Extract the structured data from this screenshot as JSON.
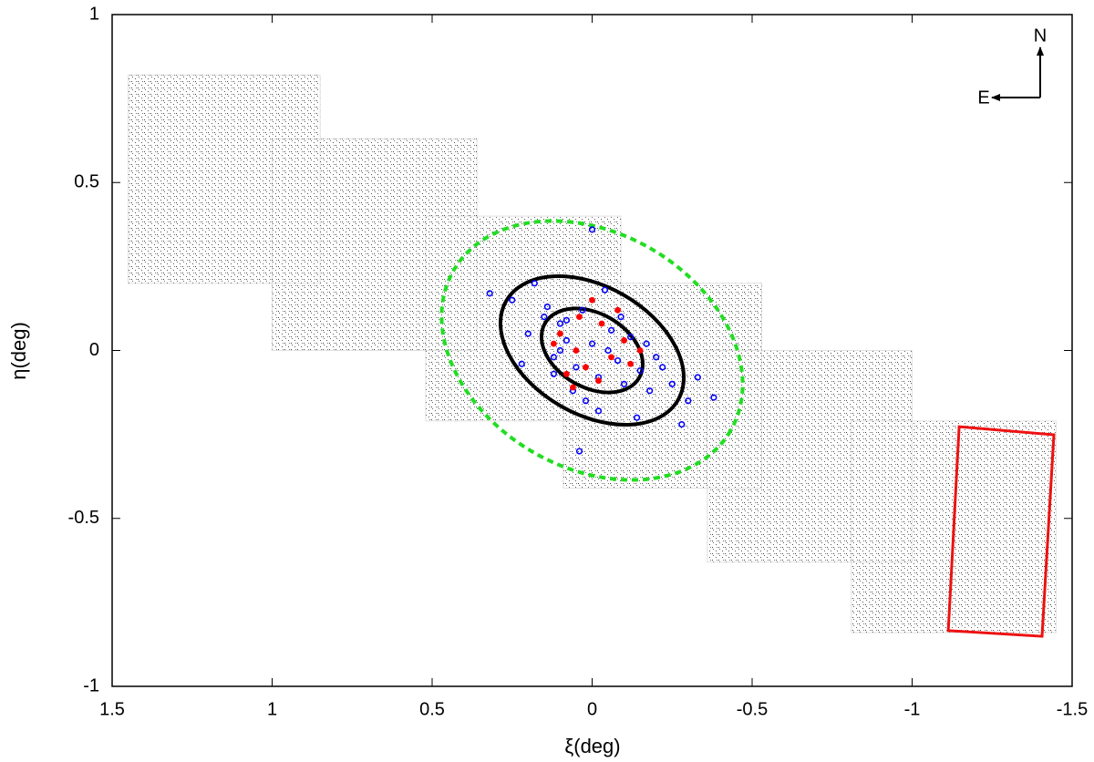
{
  "chart_data": {
    "type": "scatter",
    "xlabel": "ξ(deg)",
    "ylabel": "η(deg)",
    "xlim": [
      1.5,
      -1.5
    ],
    "ylim": [
      -1,
      1
    ],
    "xticks": [
      1.5,
      1,
      0.5,
      0,
      -0.5,
      -1,
      -1.5
    ],
    "yticks": [
      1,
      0.5,
      0,
      -0.5,
      -1
    ],
    "compass": {
      "north": "N",
      "east": "E"
    },
    "field_color": "#333333",
    "fields": [
      {
        "xlim": [
          1.45,
          0.85
        ],
        "ylim": [
          0.2,
          0.82
        ]
      },
      {
        "xlim": [
          1.0,
          0.36
        ],
        "ylim": [
          0.0,
          0.63
        ]
      },
      {
        "xlim": [
          0.52,
          -0.09
        ],
        "ylim": [
          -0.21,
          0.4
        ]
      },
      {
        "xlim": [
          0.09,
          -0.53
        ],
        "ylim": [
          -0.41,
          0.2
        ]
      },
      {
        "xlim": [
          -0.36,
          -1.0
        ],
        "ylim": [
          -0.63,
          0.0
        ]
      },
      {
        "xlim": [
          -0.81,
          -1.45
        ],
        "ylim": [
          -0.84,
          -0.21
        ]
      }
    ],
    "ellipses": [
      {
        "center": [
          0,
          0
        ],
        "semi_axes": [
          0.17,
          0.11
        ],
        "angle": 30,
        "color": "#000000",
        "dashed": false
      },
      {
        "center": [
          0,
          0
        ],
        "semi_axes": [
          0.31,
          0.19
        ],
        "angle": 30,
        "color": "#000000",
        "dashed": false
      },
      {
        "center": [
          0,
          0
        ],
        "semi_axes": [
          0.5,
          0.35
        ],
        "angle": 30,
        "color": "#22dd22",
        "dashed": true
      }
    ],
    "box": {
      "x": [
        -1.147,
        -1.443,
        -1.406,
        -1.113
      ],
      "y": [
        -0.227,
        -0.251,
        -0.851,
        -0.834
      ],
      "color": "#ee1111"
    },
    "series": [
      {
        "color": "#0000ff",
        "x": [
          0.25,
          0.2,
          0.15,
          0.12,
          0.1,
          0.08,
          0.05,
          0.03,
          0.0,
          -0.02,
          -0.05,
          -0.08,
          -0.1,
          -0.12,
          -0.15,
          -0.18,
          -0.2,
          -0.25,
          -0.3,
          -0.38,
          0.32,
          0.18,
          0.06,
          -0.04,
          -0.14,
          0.1,
          -0.06,
          0.02,
          -0.22,
          0.14,
          -0.09,
          0.0,
          0.04,
          -0.33,
          0.22,
          -0.17,
          0.08,
          -0.02,
          0.12,
          -0.28
        ],
        "y": [
          0.15,
          0.05,
          0.1,
          -0.02,
          0.08,
          0.03,
          -0.05,
          0.12,
          0.02,
          -0.08,
          0.0,
          -0.03,
          -0.1,
          0.04,
          -0.06,
          -0.12,
          -0.02,
          -0.1,
          -0.15,
          -0.14,
          0.17,
          0.2,
          -0.12,
          0.18,
          -0.2,
          0.0,
          0.06,
          -0.15,
          -0.05,
          0.13,
          0.1,
          0.36,
          -0.3,
          -0.08,
          -0.04,
          0.02,
          0.09,
          -0.18,
          -0.07,
          -0.22
        ]
      },
      {
        "color": "#ff0000",
        "x": [
          0.1,
          0.05,
          0.02,
          -0.03,
          -0.06,
          -0.1,
          0.0,
          0.08,
          -0.12,
          0.04,
          -0.02,
          -0.15,
          0.12,
          -0.08,
          0.06
        ],
        "y": [
          0.05,
          0.0,
          -0.05,
          0.08,
          -0.02,
          0.03,
          0.15,
          -0.07,
          -0.04,
          0.1,
          -0.09,
          0.0,
          0.02,
          0.12,
          -0.11
        ]
      }
    ]
  }
}
